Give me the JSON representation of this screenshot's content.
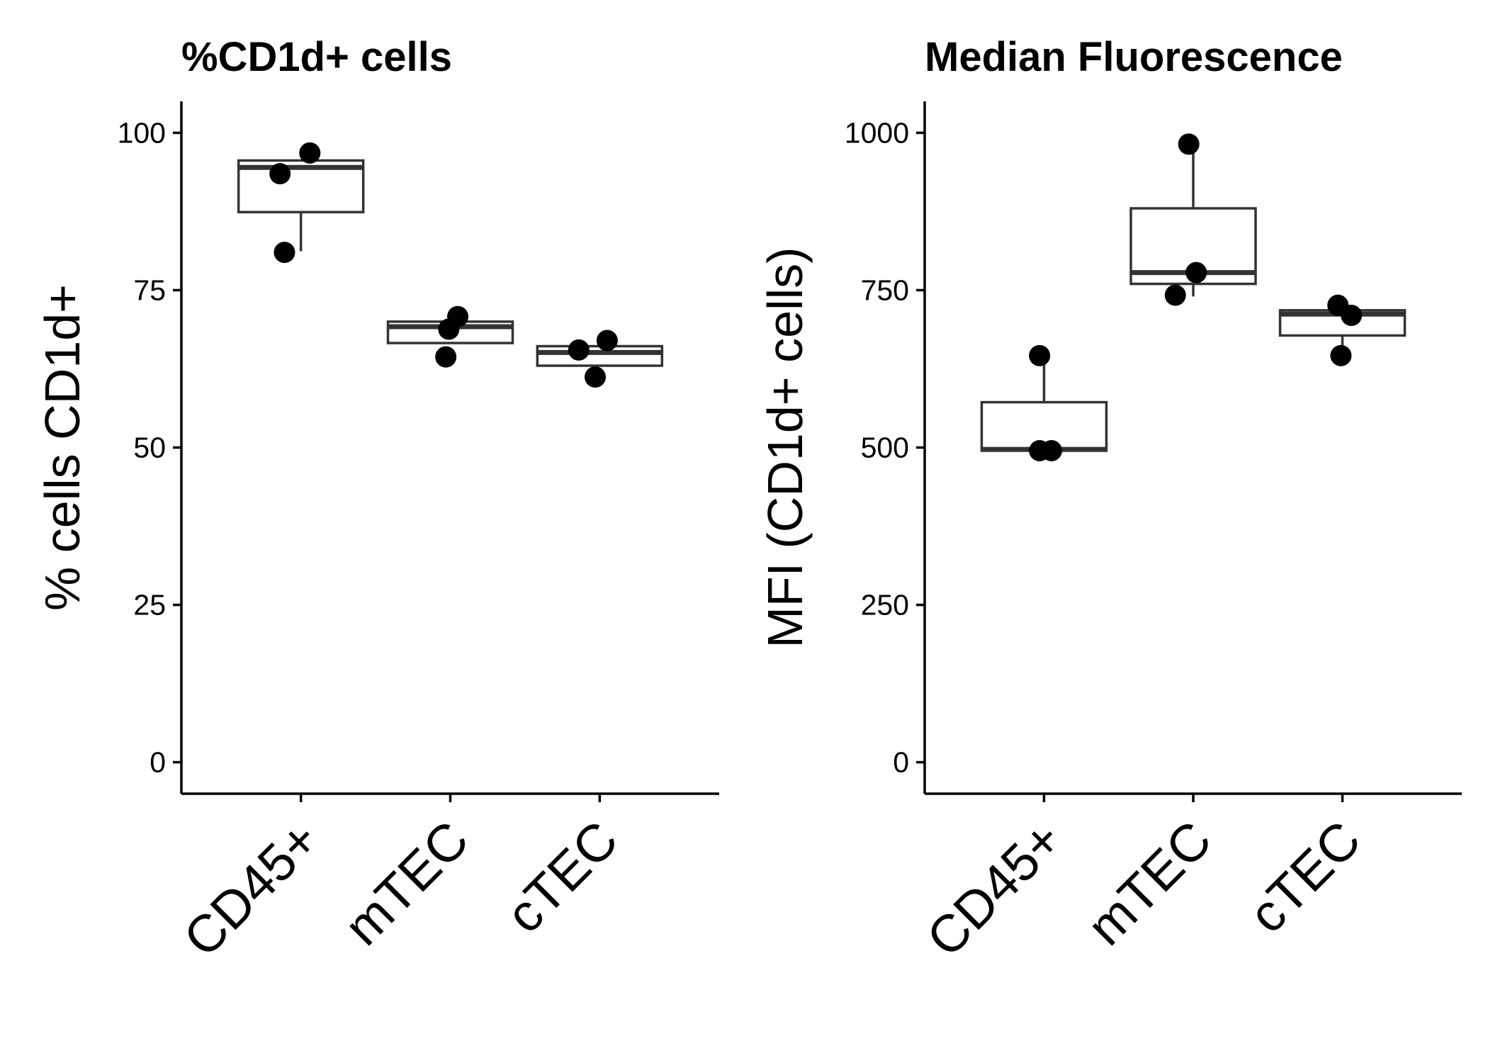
{
  "chart_data": [
    {
      "type": "box",
      "title": "%CD1d+ cells",
      "xlabel": "",
      "ylabel": "% cells CD1d+",
      "categories": [
        "CD45+",
        "mTEC",
        "cTEC"
      ],
      "ylim": [
        -5,
        105
      ],
      "yticks": [
        0,
        25,
        50,
        75,
        100
      ],
      "boxes": [
        {
          "category": "CD45+",
          "q1": 87.4,
          "median": 94.5,
          "q3": 95.6,
          "whisker_low": 81.2,
          "whisker_high": 95.6
        },
        {
          "category": "mTEC",
          "q1": 66.6,
          "median": 69.2,
          "q3": 70.0,
          "whisker_low": 66.6,
          "whisker_high": 70.0
        },
        {
          "category": "cTEC",
          "q1": 63.0,
          "median": 65.1,
          "q3": 66.1,
          "whisker_low": 63.0,
          "whisker_high": 66.1
        }
      ],
      "points": [
        {
          "category": "CD45+",
          "y": 93.5,
          "jitter": -0.14
        },
        {
          "category": "CD45+",
          "y": 96.8,
          "jitter": 0.06
        },
        {
          "category": "CD45+",
          "y": 81.0,
          "jitter": -0.11
        },
        {
          "category": "mTEC",
          "y": 70.8,
          "jitter": 0.05
        },
        {
          "category": "mTEC",
          "y": 68.8,
          "jitter": -0.01
        },
        {
          "category": "mTEC",
          "y": 64.4,
          "jitter": -0.03
        },
        {
          "category": "cTEC",
          "y": 65.5,
          "jitter": -0.14
        },
        {
          "category": "cTEC",
          "y": 67.0,
          "jitter": 0.05
        },
        {
          "category": "cTEC",
          "y": 61.2,
          "jitter": -0.03
        }
      ],
      "grid": false,
      "legend": "none"
    },
    {
      "type": "box",
      "title": "Median Fluorescence",
      "xlabel": "",
      "ylabel": "MFI (CD1d+ cells)",
      "categories": [
        "CD45+",
        "mTEC",
        "cTEC"
      ],
      "ylim": [
        -50,
        1050
      ],
      "yticks": [
        0,
        250,
        500,
        750,
        1000
      ],
      "boxes": [
        {
          "category": "CD45+",
          "q1": 495,
          "median": 497,
          "q3": 572,
          "whisker_low": 495,
          "whisker_high": 645
        },
        {
          "category": "mTEC",
          "q1": 760,
          "median": 778,
          "q3": 880,
          "whisker_low": 740,
          "whisker_high": 980
        },
        {
          "category": "cTEC",
          "q1": 678,
          "median": 712,
          "q3": 718,
          "whisker_low": 645,
          "whisker_high": 718
        }
      ],
      "points": [
        {
          "category": "CD45+",
          "y": 646,
          "jitter": -0.03
        },
        {
          "category": "CD45+",
          "y": 495,
          "jitter": -0.03
        },
        {
          "category": "CD45+",
          "y": 495,
          "jitter": 0.05
        },
        {
          "category": "mTEC",
          "y": 982,
          "jitter": -0.03
        },
        {
          "category": "mTEC",
          "y": 778,
          "jitter": 0.02
        },
        {
          "category": "mTEC",
          "y": 742,
          "jitter": -0.12
        },
        {
          "category": "cTEC",
          "y": 726,
          "jitter": -0.03
        },
        {
          "category": "cTEC",
          "y": 710,
          "jitter": 0.06
        },
        {
          "category": "cTEC",
          "y": 646,
          "jitter": -0.01
        }
      ],
      "grid": false,
      "legend": "none"
    }
  ]
}
